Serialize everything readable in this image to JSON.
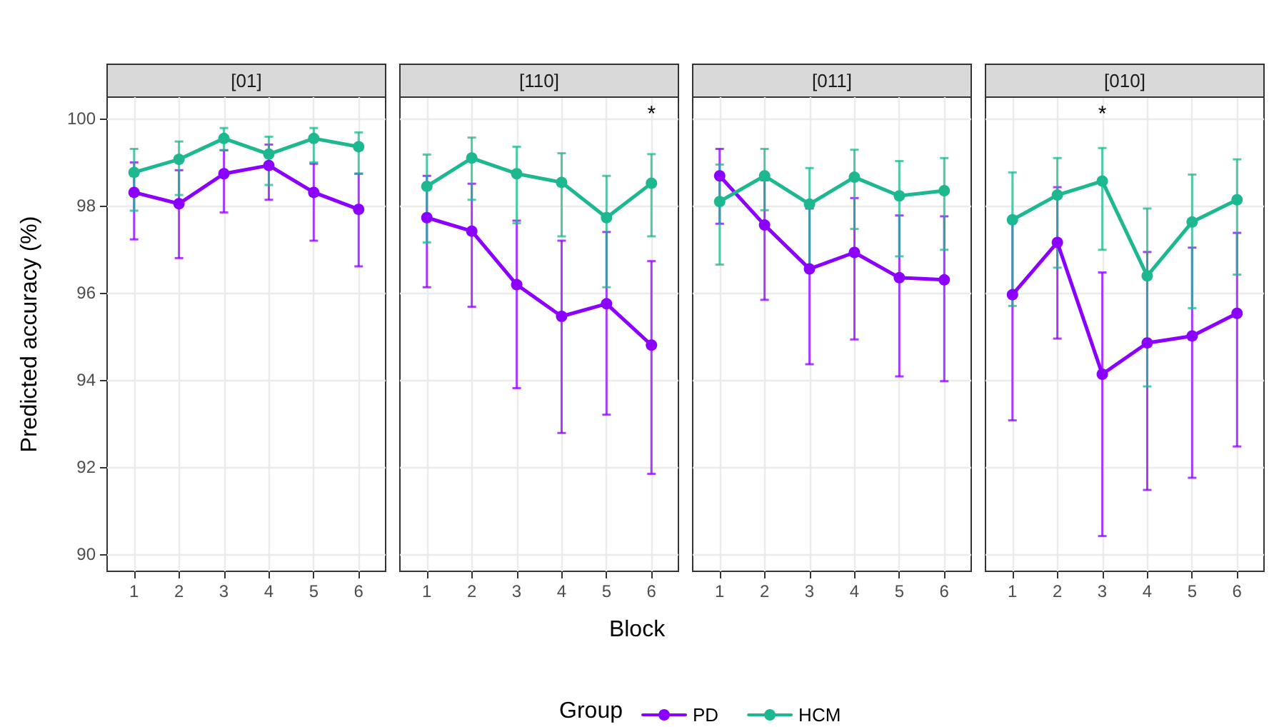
{
  "chart_data": [
    {
      "type": "line",
      "title": "[01]",
      "ylabel": "Predicted accuracy (%)",
      "legend_title": "Group",
      "legend": "bottom",
      "grid": true,
      "marker": "circle",
      "line_style": "solid",
      "x": [
        1,
        2,
        3,
        4,
        5,
        6
      ],
      "xlim": [
        0.4,
        6.6
      ],
      "xticks": [
        1,
        2,
        3,
        4,
        5,
        6
      ],
      "ylim": [
        89.6,
        100.5
      ],
      "yticks": [
        90,
        92,
        94,
        96,
        98,
        100
      ],
      "series": [
        {
          "name": "PD",
          "color": "#8b00ff",
          "values": [
            98.31,
            98.05,
            98.74,
            98.93,
            98.31,
            97.92
          ],
          "errors": [
            [
              97.23,
              99.0
            ],
            [
              96.8,
              98.82
            ],
            [
              97.85,
              99.28
            ],
            [
              98.14,
              99.41
            ],
            [
              97.2,
              98.97
            ],
            [
              96.61,
              98.74
            ]
          ]
        },
        {
          "name": "HCM",
          "color": "#1db88f",
          "values": [
            98.77,
            99.07,
            99.55,
            99.19,
            99.55,
            99.36
          ],
          "errors": [
            [
              97.89,
              99.31
            ],
            [
              98.25,
              99.48
            ],
            [
              99.28,
              99.79
            ],
            [
              98.48,
              99.59
            ],
            [
              99.0,
              99.79
            ],
            [
              98.74,
              99.69
            ]
          ]
        }
      ]
    },
    {
      "type": "line",
      "title": "[110]",
      "xlabel": "Block",
      "grid": true,
      "marker": "circle",
      "line_style": "solid",
      "tick_labels": "x",
      "x": [
        1,
        2,
        3,
        4,
        5,
        6
      ],
      "xlim": [
        0.4,
        6.6
      ],
      "xticks": [
        1,
        2,
        3,
        4,
        5,
        6
      ],
      "ylim": [
        89.6,
        100.5
      ],
      "yticks": [
        90,
        92,
        94,
        96,
        98,
        100
      ],
      "annotations": [
        "*"
      ],
      "series": [
        {
          "color": "#8b00ff",
          "values": [
            97.73,
            97.42,
            96.19,
            95.46,
            95.75,
            94.8
          ],
          "errors": [
            [
              96.13,
              98.69
            ],
            [
              95.68,
              98.51
            ],
            [
              93.81,
              97.66
            ],
            [
              92.78,
              97.2
            ],
            [
              93.2,
              97.4
            ],
            [
              91.84,
              96.73
            ]
          ]
        },
        {
          "color": "#1db88f",
          "values": [
            98.45,
            99.1,
            98.74,
            98.54,
            97.73,
            98.52
          ],
          "errors": [
            [
              97.16,
              99.18
            ],
            [
              98.14,
              99.57
            ],
            [
              97.6,
              99.36
            ],
            [
              97.3,
              99.21
            ],
            [
              96.13,
              98.69
            ],
            [
              97.3,
              99.19
            ]
          ]
        }
      ]
    },
    {
      "type": "line",
      "title": "[011]",
      "grid": true,
      "marker": "circle",
      "line_style": "solid",
      "tick_labels": "x",
      "x": [
        1,
        2,
        3,
        4,
        5,
        6
      ],
      "xlim": [
        0.4,
        6.6
      ],
      "xticks": [
        1,
        2,
        3,
        4,
        5,
        6
      ],
      "ylim": [
        89.6,
        100.5
      ],
      "yticks": [
        90,
        92,
        94,
        96,
        98,
        100
      ],
      "series": [
        {
          "color": "#8b00ff",
          "values": [
            98.69,
            97.56,
            96.55,
            96.93,
            96.35,
            96.3
          ],
          "errors": [
            [
              97.59,
              99.31
            ],
            [
              95.84,
              98.59
            ],
            [
              94.36,
              97.94
            ],
            [
              94.93,
              98.18
            ],
            [
              94.08,
              97.78
            ],
            [
              93.97,
              97.76
            ]
          ]
        },
        {
          "color": "#1db88f",
          "values": [
            98.1,
            98.69,
            98.04,
            98.66,
            98.23,
            98.35
          ],
          "errors": [
            [
              96.65,
              98.95
            ],
            [
              97.9,
              99.31
            ],
            [
              96.6,
              98.87
            ],
            [
              97.47,
              99.29
            ],
            [
              96.84,
              99.03
            ],
            [
              96.99,
              99.1
            ]
          ]
        }
      ]
    },
    {
      "type": "line",
      "title": "[010]",
      "grid": true,
      "marker": "circle",
      "line_style": "solid",
      "tick_labels": "x",
      "x": [
        1,
        2,
        3,
        4,
        5,
        6
      ],
      "xlim": [
        0.4,
        6.6
      ],
      "xticks": [
        1,
        2,
        3,
        4,
        5,
        6
      ],
      "ylim": [
        89.6,
        100.5
      ],
      "yticks": [
        90,
        92,
        94,
        96,
        98,
        100
      ],
      "annotations": [
        "*"
      ],
      "series": [
        {
          "color": "#8b00ff",
          "values": [
            95.96,
            97.16,
            94.13,
            94.85,
            95.01,
            95.53
          ],
          "errors": [
            [
              93.07,
              97.66
            ],
            [
              94.95,
              98.43
            ],
            [
              90.41,
              96.47
            ],
            [
              91.47,
              96.94
            ],
            [
              91.75,
              97.04
            ],
            [
              92.47,
              97.38
            ]
          ]
        },
        {
          "color": "#1db88f",
          "values": [
            97.68,
            98.25,
            98.57,
            96.39,
            97.63,
            98.14
          ],
          "errors": [
            [
              95.7,
              98.77
            ],
            [
              96.58,
              99.1
            ],
            [
              96.99,
              99.33
            ],
            [
              93.85,
              97.94
            ],
            [
              95.65,
              98.72
            ],
            [
              96.42,
              99.07
            ]
          ]
        }
      ]
    }
  ]
}
